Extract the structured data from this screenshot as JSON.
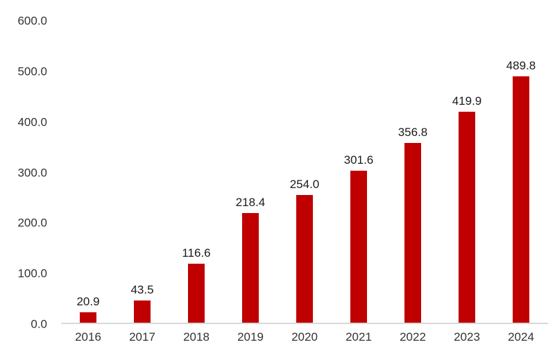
{
  "chart_data": {
    "type": "bar",
    "title": "",
    "xlabel": "",
    "ylabel": "",
    "categories": [
      "2016",
      "2017",
      "2018",
      "2019",
      "2020",
      "2021",
      "2022",
      "2023",
      "2024"
    ],
    "values": [
      20.9,
      43.5,
      116.6,
      218.4,
      254.0,
      301.6,
      356.8,
      419.9,
      489.8
    ],
    "value_labels": [
      "20.9",
      "43.5",
      "116.6",
      "218.4",
      "254.0",
      "301.6",
      "356.8",
      "419.9",
      "489.8"
    ],
    "ylim": [
      0,
      600
    ],
    "ytick_step": 100,
    "ytick_labels": [
      "0.0",
      "100.0",
      "200.0",
      "300.0",
      "400.0",
      "500.0",
      "600.0"
    ],
    "grid": false,
    "legend": false,
    "colors": {
      "bar": "#c00000",
      "value_label": "#1a1a1a",
      "tick_label": "#333333",
      "axis_line": "#d9d9d9",
      "background": "#ffffff"
    }
  }
}
